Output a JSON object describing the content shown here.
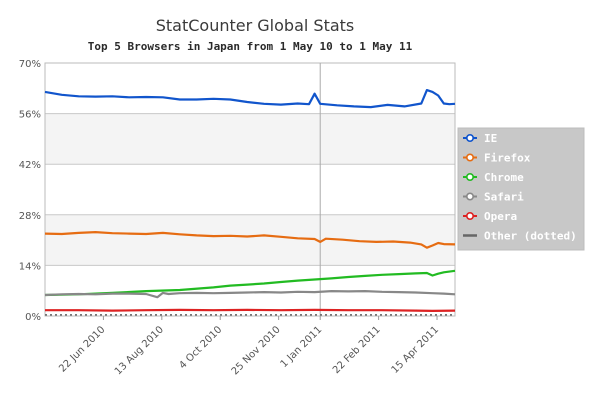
{
  "chart_data": {
    "type": "line",
    "title": "StatCounter Global Stats",
    "subtitle": "Top 5 Browsers in Japan from 1 May 10 to 1 May 11",
    "xlabel": "",
    "ylabel": "",
    "x_range": [
      0,
      365
    ],
    "ylim": [
      0,
      70
    ],
    "y_ticks": [
      0,
      14,
      28,
      42,
      56,
      70
    ],
    "y_tick_labels": [
      "0%",
      "14%",
      "28%",
      "42%",
      "56%",
      "70%"
    ],
    "x_ticks": [
      {
        "label": "22 Jun 2010",
        "day": 52
      },
      {
        "label": "13 Aug 2010",
        "day": 104
      },
      {
        "label": "4 Oct 2010",
        "day": 156
      },
      {
        "label": "25 Nov 2010",
        "day": 208
      },
      {
        "label": "1 Jan 2011",
        "day": 245
      },
      {
        "label": "22 Feb 2011",
        "day": 297
      },
      {
        "label": "15 Apr 2011",
        "day": 349
      }
    ],
    "reference_line_day": 245,
    "legend_position": "right",
    "series": [
      {
        "name": "IE",
        "color": "#1155cc",
        "x": [
          0,
          15,
          30,
          45,
          60,
          75,
          90,
          105,
          120,
          135,
          150,
          165,
          180,
          195,
          210,
          225,
          235,
          240,
          245,
          260,
          275,
          290,
          305,
          320,
          335,
          340,
          345,
          350,
          355,
          360,
          365
        ],
        "values": [
          62.0,
          61.2,
          60.8,
          60.7,
          60.8,
          60.5,
          60.6,
          60.5,
          59.9,
          59.9,
          60.1,
          59.9,
          59.2,
          58.7,
          58.5,
          58.8,
          58.6,
          61.5,
          58.7,
          58.3,
          58.0,
          57.8,
          58.4,
          58.0,
          58.8,
          62.5,
          62.0,
          61.0,
          58.8,
          58.6,
          58.7
        ]
      },
      {
        "name": "Firefox",
        "color": "#e66c12",
        "x": [
          0,
          15,
          30,
          45,
          60,
          75,
          90,
          105,
          120,
          135,
          150,
          165,
          180,
          195,
          210,
          225,
          240,
          245,
          250,
          265,
          280,
          295,
          310,
          325,
          335,
          340,
          345,
          350,
          355,
          365
        ],
        "values": [
          22.8,
          22.7,
          23.0,
          23.2,
          22.9,
          22.8,
          22.7,
          23.0,
          22.6,
          22.3,
          22.1,
          22.2,
          22.0,
          22.3,
          21.9,
          21.5,
          21.3,
          20.5,
          21.4,
          21.1,
          20.7,
          20.5,
          20.6,
          20.3,
          19.8,
          18.9,
          19.5,
          20.2,
          19.9,
          19.8
        ]
      },
      {
        "name": "Chrome",
        "color": "#22bb22",
        "x": [
          0,
          30,
          60,
          90,
          120,
          150,
          165,
          180,
          195,
          210,
          225,
          240,
          255,
          270,
          285,
          300,
          315,
          330,
          340,
          345,
          350,
          355,
          365
        ],
        "values": [
          5.8,
          6.0,
          6.4,
          6.9,
          7.2,
          7.9,
          8.4,
          8.7,
          9.0,
          9.4,
          9.8,
          10.1,
          10.4,
          10.8,
          11.1,
          11.4,
          11.6,
          11.8,
          11.9,
          11.2,
          11.7,
          12.1,
          12.5
        ]
      },
      {
        "name": "Safari",
        "color": "#888888",
        "x": [
          0,
          15,
          30,
          45,
          60,
          75,
          90,
          100,
          105,
          110,
          120,
          135,
          150,
          165,
          180,
          195,
          210,
          225,
          240,
          255,
          270,
          285,
          300,
          315,
          330,
          345,
          355,
          365
        ],
        "values": [
          5.8,
          6.0,
          6.1,
          6.0,
          6.2,
          6.2,
          6.1,
          5.2,
          6.4,
          6.1,
          6.3,
          6.4,
          6.3,
          6.4,
          6.5,
          6.6,
          6.5,
          6.7,
          6.6,
          6.9,
          6.8,
          6.9,
          6.7,
          6.6,
          6.5,
          6.3,
          6.2,
          6.0
        ]
      },
      {
        "name": "Opera",
        "color": "#dd2222",
        "x": [
          0,
          30,
          60,
          90,
          120,
          150,
          180,
          210,
          240,
          270,
          300,
          330,
          345,
          365
        ],
        "values": [
          1.6,
          1.6,
          1.5,
          1.6,
          1.7,
          1.6,
          1.7,
          1.6,
          1.7,
          1.6,
          1.6,
          1.5,
          1.4,
          1.5
        ]
      },
      {
        "name": "Other (dotted)",
        "color": "#666666",
        "x": [
          0,
          365
        ],
        "values": [
          0.3,
          0.3
        ]
      }
    ]
  }
}
